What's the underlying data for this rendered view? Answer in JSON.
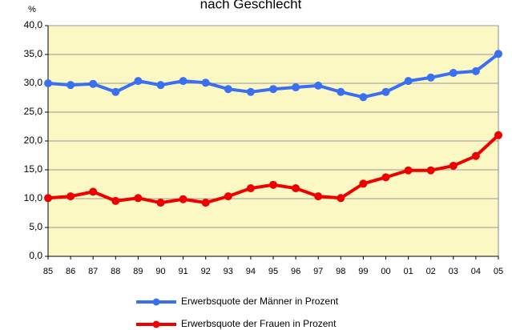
{
  "chart_data": {
    "type": "line",
    "title": "nach Geschlecht",
    "y_label": "%",
    "categories": [
      "85",
      "86",
      "87",
      "88",
      "89",
      "90",
      "91",
      "92",
      "93",
      "94",
      "95",
      "96",
      "97",
      "98",
      "99",
      "00",
      "01",
      "02",
      "03",
      "04",
      "05"
    ],
    "series": [
      {
        "name": "Erwerbsquote der Männer in Prozent",
        "color": "#3a6ff0",
        "values": [
          30.0,
          29.7,
          29.9,
          28.5,
          30.4,
          29.7,
          30.4,
          30.1,
          29.0,
          28.5,
          29.0,
          29.3,
          29.6,
          28.5,
          27.6,
          28.5,
          30.4,
          31.0,
          31.8,
          32.1,
          35.1
        ]
      },
      {
        "name": "Erwerbsquote der Frauen in Prozent",
        "color": "#ee0000",
        "values": [
          10.1,
          10.4,
          11.2,
          9.6,
          10.1,
          9.3,
          9.9,
          9.3,
          10.4,
          11.8,
          12.4,
          11.8,
          10.4,
          10.1,
          12.6,
          13.7,
          14.9,
          14.9,
          15.7,
          17.4,
          21.0
        ]
      }
    ],
    "ylim": [
      0,
      40
    ],
    "yticks": [
      {
        "value": 0,
        "label": "0,0"
      },
      {
        "value": 5,
        "label": "5,0"
      },
      {
        "value": 10,
        "label": "10,0"
      },
      {
        "value": 15,
        "label": "15,0"
      },
      {
        "value": 20,
        "label": "20,0"
      },
      {
        "value": 25,
        "label": "25,0"
      },
      {
        "value": 30,
        "label": "30,0"
      },
      {
        "value": 35,
        "label": "35,0"
      },
      {
        "value": 40,
        "label": "40,0"
      }
    ],
    "grid": true,
    "plot_background": "#fbf8c4",
    "legend": "bottom"
  }
}
